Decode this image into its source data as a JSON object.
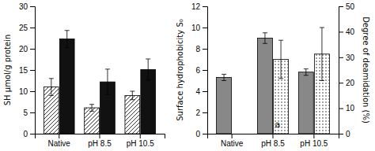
{
  "chart_data": [
    {
      "type": "bar",
      "categories": [
        "Native",
        "pH 8.5",
        "pH 10.5"
      ],
      "series": [
        {
          "color": "white",
          "values": [
            11.0,
            6.1,
            9.0
          ],
          "errors": [
            2.0,
            0.8,
            1.0
          ]
        },
        {
          "color": "#111111",
          "values": [
            22.3,
            12.2,
            15.1
          ],
          "errors": [
            2.0,
            3.0,
            2.5
          ]
        }
      ],
      "ylabel": "SH μmol/g protein",
      "ylim": [
        0,
        30
      ],
      "yticks": [
        0,
        5,
        10,
        15,
        20,
        25,
        30
      ]
    },
    {
      "type": "bar",
      "categories": [
        "Native",
        "pH 8.5",
        "pH 10.5"
      ],
      "series": [
        {
          "color": "#888888",
          "values": [
            5.3,
            9.0,
            5.8
          ],
          "errors": [
            0.3,
            0.5,
            0.3
          ]
        },
        {
          "color": "white",
          "values": [
            null,
            7.0,
            7.5
          ],
          "errors": [
            null,
            1.8,
            2.5
          ]
        }
      ],
      "ylabel": "Surface hydrophobicity S₀",
      "y2label": "Degree of deamidation (%)",
      "ylim": [
        0,
        12
      ],
      "yticks": [
        0,
        2,
        4,
        6,
        8,
        10,
        12
      ],
      "y2lim": [
        0,
        50
      ],
      "y2ticks": [
        0,
        10,
        20,
        30,
        40,
        50
      ],
      "annotations": [
        {
          "text": "a",
          "x": 1.05,
          "y": 0.6
        }
      ]
    }
  ]
}
